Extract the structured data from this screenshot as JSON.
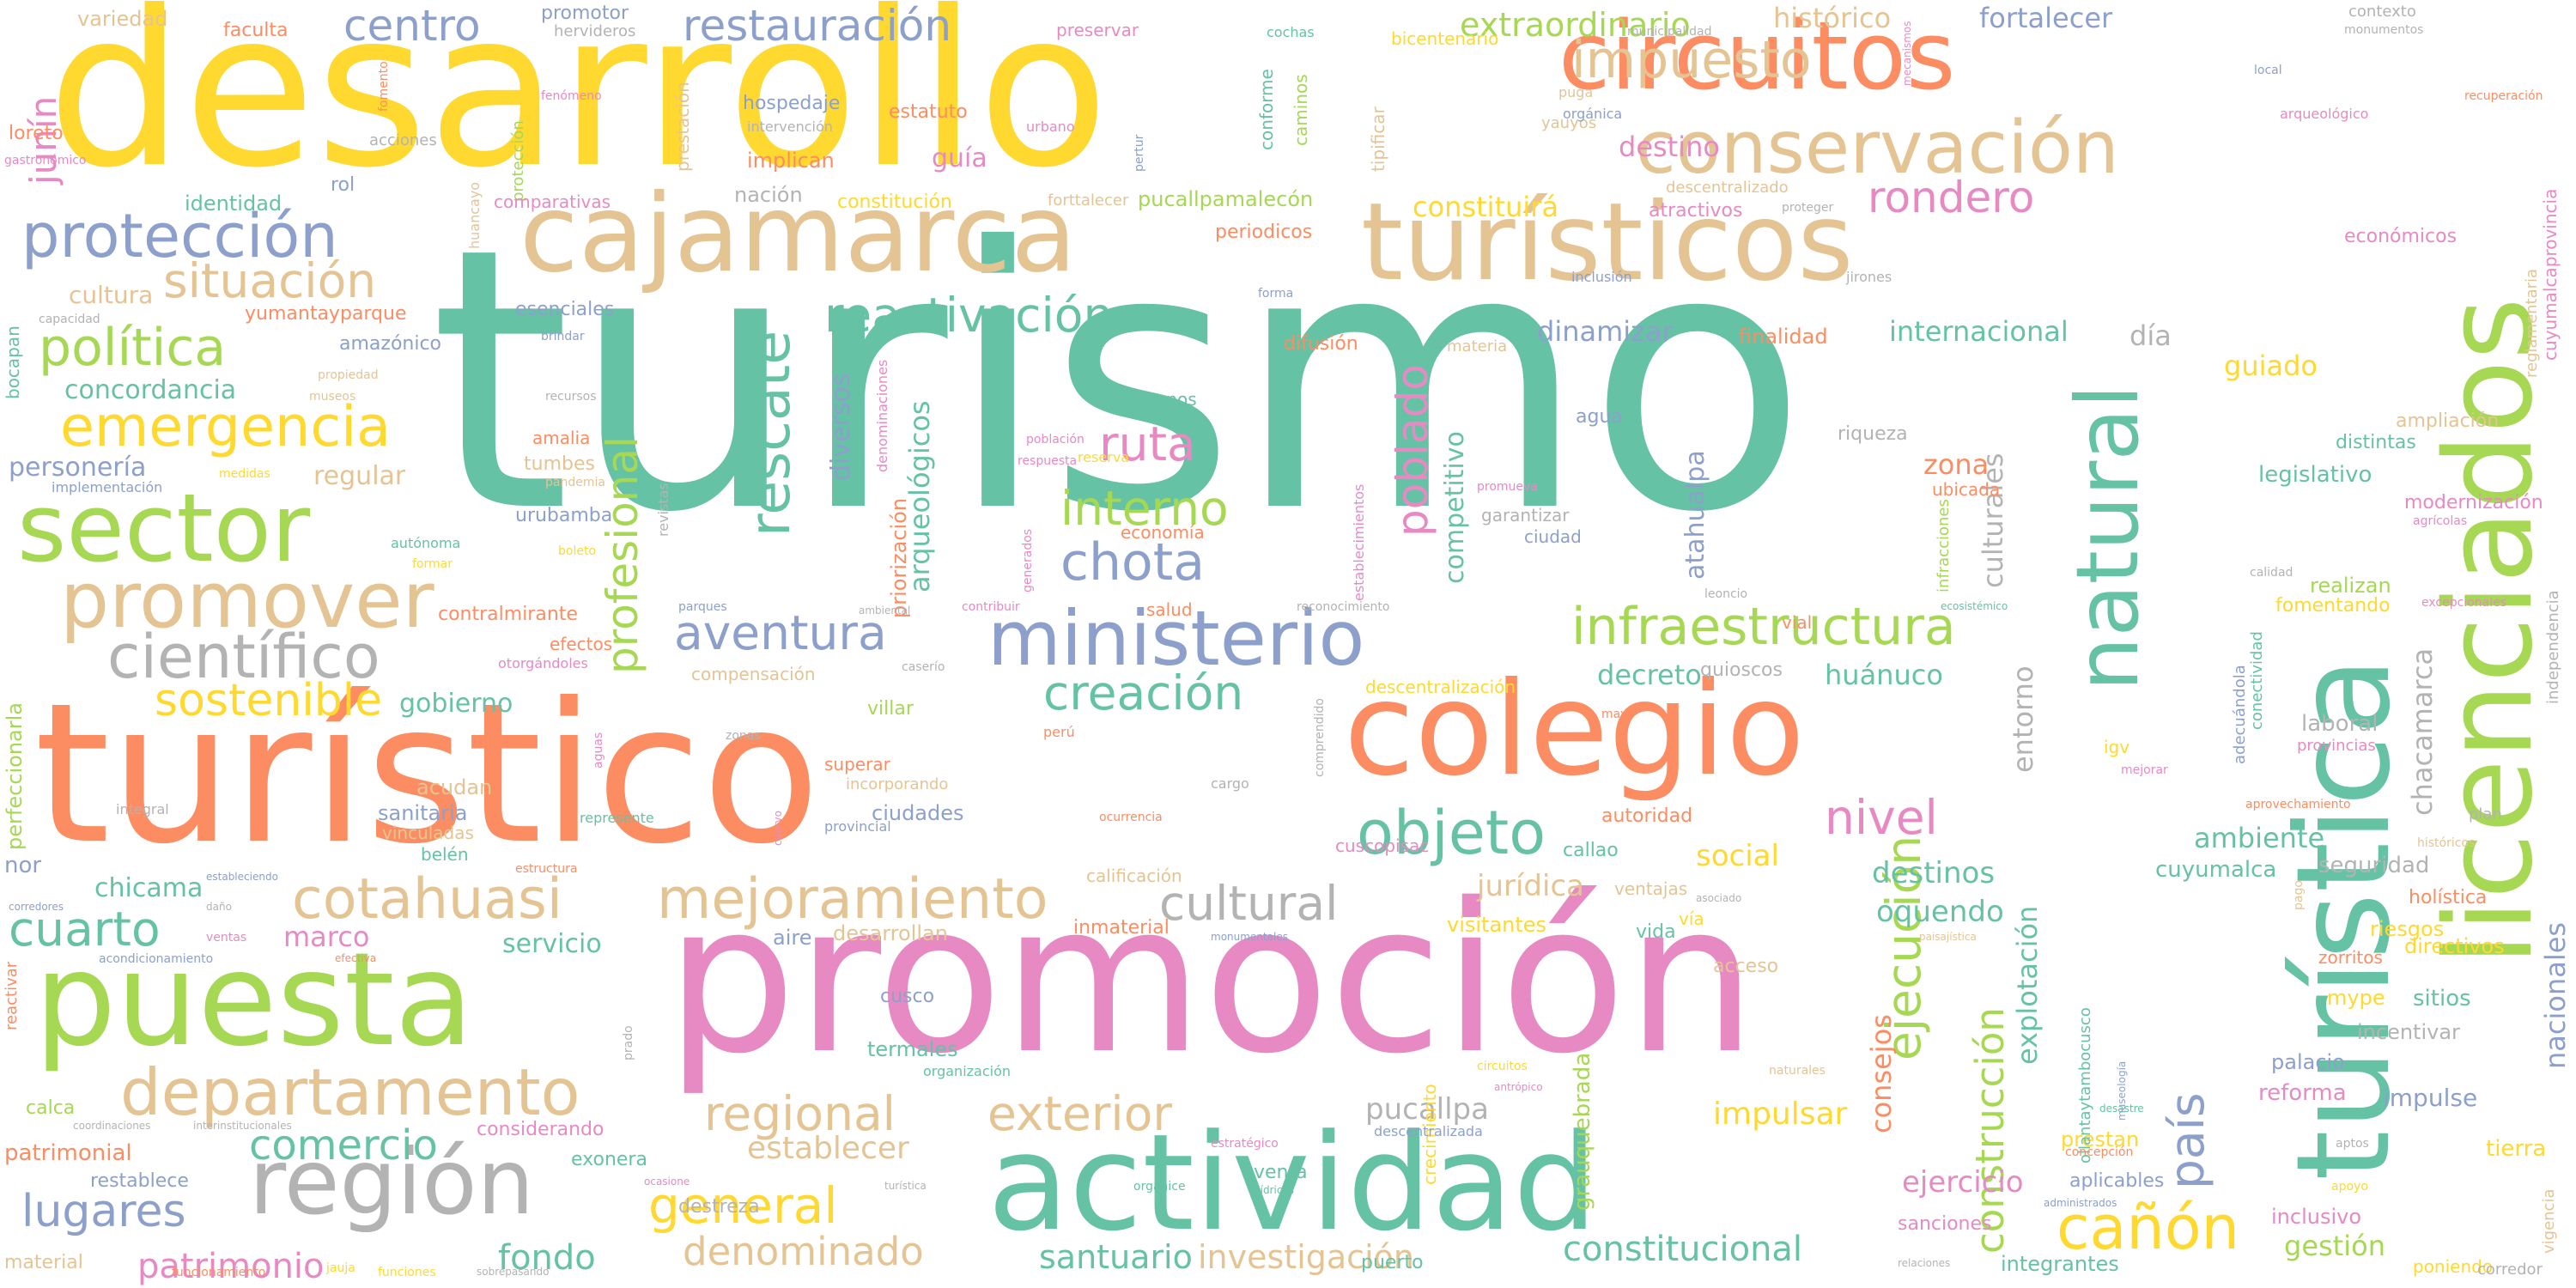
{
  "palette": {
    "teal": "#66c2a5",
    "orange": "#fc8d62",
    "blue": "#8da0cb",
    "pink": "#e78ac3",
    "lime": "#a6d854",
    "yellow": "#ffd92f",
    "tan": "#e5c494",
    "grey": "#b3b3b3",
    "background": "#ffffff"
  },
  "words": {
    "turismo": "turismo",
    "desarrollo": "desarrollo",
    "promocion": "promoción",
    "turistico": "turístico",
    "turistica": "turística",
    "licenciados": "licenciados",
    "colegio": "colegio",
    "actividad": "actividad",
    "puesta": "puesta",
    "cajamarca": "cajamarca",
    "turisticos": "turísticos",
    "circuitos": "circuitos",
    "region": "región",
    "ministerio": "ministerio",
    "natural": "natural",
    "sector": "sector",
    "conservacion": "conservación",
    "promover": "promover",
    "departamento": "departamento",
    "cotahuasi": "cotahuasi",
    "mejoramiento": "mejoramiento",
    "proteccion": "protección",
    "cientifico": "científico",
    "infraestructura": "infraestructura",
    "objeto": "objeto",
    "canon": "cañón",
    "ejecucion": "ejecución",
    "regional": "regional",
    "exterior": "exterior",
    "cultural": "cultural",
    "general": "general",
    "rescate": "rescate",
    "impuesto": "impuesto",
    "restauracion": "restauración",
    "centro": "centro",
    "emergencia": "emergencia",
    "politica": "política",
    "situacion": "situación",
    "reactivacion": "reactivación",
    "ruta": "ruta",
    "interno": "interno",
    "chota": "chota",
    "aventura": "aventura",
    "creacion": "creación",
    "sostenible": "sostenible",
    "profesional": "profesional",
    "poblado": "poblado",
    "pais": "país",
    "construccion": "construcción",
    "nivel": "nivel",
    "rondero": "rondero",
    "cuarto": "cuarto",
    "lugares": "lugares",
    "comercio": "comercio",
    "denominado": "denominado",
    "investigacion": "investigación",
    "constitucional": "constitucional",
    "fondo": "fondo",
    "patrimonio": "patrimonio",
    "santuario": "santuario",
    "junin": "junín",
    "extraordinario": "extraordinario",
    "fortalecer": "fortalecer",
    "historico": "histórico",
    "destino": "destino",
    "constituira": "constituirá",
    "internacional": "internacional",
    "dinamizar": "dinamizar",
    "decreto": "decreto",
    "huanuco": "huánuco",
    "ambiente": "ambiente",
    "destinos": "destinos",
    "oquendo": "oquendo",
    "social": "social",
    "juridica": "jurídica",
    "establecer": "establecer",
    "impulsar": "impulsar",
    "ejercicio": "ejercicio",
    "gestion": "gestión",
    "consejos": "consejos",
    "explotacion": "explotación",
    "culturales": "culturales",
    "entorno": "entorno",
    "chacamarca": "chacamarca",
    "nacionales": "nacionales",
    "arqueologicos": "arqueológicos",
    "diversos": "diversos",
    "competitivo": "competitivo",
    "atahualpa": "atahualpa",
    "zona": "zona",
    "guiado": "guiado",
    "pucallpa": "pucallpa",
    "marco": "marco",
    "servicio": "servicio",
    "chicama": "chicama",
    "sanitaria": "sanitaria",
    "gobierno": "gobierno",
    "concordancia": "concordancia",
    "personeria": "personería",
    "regular": "regular",
    "cultura": "cultura",
    "identidad": "identidad",
    "variedad": "variedad",
    "faculta": "faculta",
    "promotor": "promotor",
    "hospedaje": "hospedaje",
    "estatuto": "estatuto",
    "implican": "implican",
    "guia": "guía",
    "nacion": "nación",
    "constitucion": "constitución",
    "pucallpamalecon": "pucallpamalecón",
    "atractivos": "atractivos",
    "periodicos": "periodicos",
    "finalidad": "finalidad",
    "dia": "día",
    "legislativo": "legislativo",
    "realizan": "realizan",
    "laboral": "laboral",
    "seguridad": "seguridad",
    "riesgos": "riesgos",
    "sitios": "sitios",
    "directivos": "directivos",
    "incentivar": "incentivar",
    "palacio": "palacio",
    "impulse": "impulse",
    "reforma": "reforma",
    "tierra": "tierra",
    "inclusivo": "inclusivo",
    "sanciones": "sanciones",
    "integrantes": "integrantes",
    "aplicables": "aplicables",
    "prestan": "prestan",
    "mype": "mype",
    "economicos": "económicos",
    "ampliacion": "ampliación",
    "distintas": "distintas",
    "modernizacion": "modernización",
    "fomentando": "fomentando",
    "cuyumalca": "cuyumalca",
    "visitantes": "visitantes",
    "autoridad": "autoridad",
    "callao": "callao",
    "vida": "vida",
    "acceso": "acceso",
    "ciudades": "ciudades",
    "termales": "termales",
    "desarrollan": "desarrollan",
    "cusco": "cusco",
    "aire": "aire",
    "venta": "venta",
    "puerto": "puerto",
    "destreza": "destreza",
    "exonera": "exonera",
    "considerando": "considerando",
    "restablece": "restablece",
    "patrimonial": "patrimonial",
    "calca": "calca",
    "material": "material",
    "nor": "nor",
    "loreto": "loreto",
    "rol": "rol",
    "amazonico": "amazónico",
    "esenciales": "esenciales",
    "yumantayparque": "yumantayparque",
    "amalia": "amalia",
    "tumbes": "tumbes",
    "urubamba": "urubamba",
    "contralmirante": "contralmirante",
    "efectos": "efectos",
    "acudan": "acudan",
    "belen": "belén",
    "vinculadas": "vinculadas",
    "compensacion": "compensación",
    "villar": "villar",
    "superar": "superar",
    "incorporando": "incorporando",
    "priorizacion": "priorización",
    "economia": "economía",
    "difusion": "difusión",
    "gobiernos": "gobiernos",
    "agua": "agua",
    "riqueza": "riqueza",
    "ciudad": "ciudad",
    "garantizar": "garantizar",
    "salud": "salud",
    "descentralizacion": "descentralización",
    "quioscos": "quioscos",
    "vial": "vial",
    "igv": "igv",
    "ubicada": "ubicada",
    "infracciones": "infracciones",
    "graduebrada": "grauquebrada",
    "crecimiento": "crecimiento",
    "ollantaytambocusco": "ollantaytambocusco",
    "adecuandola": "adecuándola",
    "conectividad": "conectividad",
    "holistica": "holística",
    "zorritos": "zorritos",
    "cuscopisac": "cuscopisac",
    "inmaterial": "inmaterial",
    "calificacion": "calificación",
    "ventajas": "ventajas",
    "via": "vía",
    "cuyumalcaprovincia": "cuyumalcaprovincia",
    "reglamentaria": "reglamentaria",
    "independencia": "independencia",
    "vigencia": "vigencia",
    "poniendo": "poniendo",
    "corredor": "corredor",
    "perfeccionarla": "perfeccionarla",
    "bocapan": "bocapan",
    "huancayo": "huancayo",
    "proteccion2": "protección",
    "prestacion": "prestación",
    "cochas": "cochas",
    "caminos": "caminos",
    "conforme": "conforme",
    "tipificar": "tipificar",
    "bicentenario": "bicentenario",
    "hervideros": "hervideros",
    "preservar": "preservar",
    "yauyos": "yauyos",
    "descentralizado": "descentralizado",
    "jirones": "jirones",
    "inclusion": "inclusión",
    "forma": "forma",
    "materia": "materia",
    "reserva": "reserva",
    "contexto": "contexto",
    "monumentos": "monumentos",
    "arqueologico": "arqueológico",
    "recuperacion": "recuperación",
    "local": "local",
    "mecanismos": "mecanismos",
    "municipalidad": "municipalidad",
    "puga": "puga",
    "organica": "orgánica",
    "proteger": "proteger",
    "fomento": "fomento",
    "fenomeno": "fenómeno",
    "acciones": "acciones",
    "gastronomico": "gastronómico",
    "intervencion": "intervención",
    "urbano": "urbano",
    "pertur": "pertur",
    "forttalecer": "forttalecer",
    "comparativas": "comparativas",
    "capacidad": "capacidad",
    "brindar": "brindar",
    "propiedad": "propiedad",
    "museos": "museos",
    "recursos": "recursos",
    "denominaciones": "denominaciones",
    "implementacion": "implementación",
    "medidas": "medidas",
    "pandemia": "pandemia",
    "boleto": "boleto",
    "autonoma": "autónoma",
    "formar": "formar",
    "revistas": "revistas",
    "parques": "parques",
    "otorgandoles": "otorgándoles",
    "ambiental": "ambiental",
    "contribuir": "contribuir",
    "generados": "generados",
    "establecimientos": "establecimientos",
    "poblacion": "población",
    "respuesta": "respuesta",
    "promueva": "promueva",
    "reconocimiento": "reconocimiento",
    "leoncio": "leoncio",
    "ecosistemico": "ecosistémico",
    "calidad": "calidad",
    "agricolas": "agrícolas",
    "excepcionales": "excepcionales",
    "provincias": "provincias",
    "plan": "plan",
    "mejorar": "mejorar",
    "aprovechamiento": "aprovechamiento",
    "historicos": "históricos",
    "mayo": "mayo",
    "cargo": "cargo",
    "comprendido": "comprendido",
    "peru": "perú",
    "ocurrencia": "ocurrencia",
    "provincial": "provincial",
    "zonas": "zonas",
    "aguas": "aguas",
    "cuervo": "cuervo",
    "integral": "integral",
    "represente": "represente",
    "estructura": "estructura",
    "caserio": "caserío",
    "estableciendo": "estableciendo",
    "corredores": "corredores",
    "dano": "daño",
    "acondicionamiento": "acondicionamiento",
    "ventas": "ventas",
    "efectiva": "efectiva",
    "reactivar": "reactivar",
    "coordinaciones": "coordinaciones",
    "interinstitucionales": "interinstitucionales",
    "prado": "prado",
    "ocasione": "ocasione",
    "turistica_small": "turística",
    "organice": "organice",
    "hidricos": "hídricos",
    "administrados": "administrados",
    "relaciones": "relaciones",
    "funcionamiento": "funcionamiento",
    "jauja": "jauja",
    "funciones": "funciones",
    "sobrepasando": "sobrepasando",
    "organizacion": "organización",
    "estrategico": "estratégico",
    "descentralizada": "descentralizada",
    "monumentales": "monumentales",
    "circuitos_small": "circuitos",
    "antropico": "antrópico",
    "naturales": "naturales",
    "desastre": "desastre",
    "paisajistica": "paisajística",
    "asociado": "asociado",
    "concepcion": "concepción",
    "museologia": "museología",
    "pago": "pago",
    "aptos": "aptos",
    "apoyo": "apoyo"
  }
}
